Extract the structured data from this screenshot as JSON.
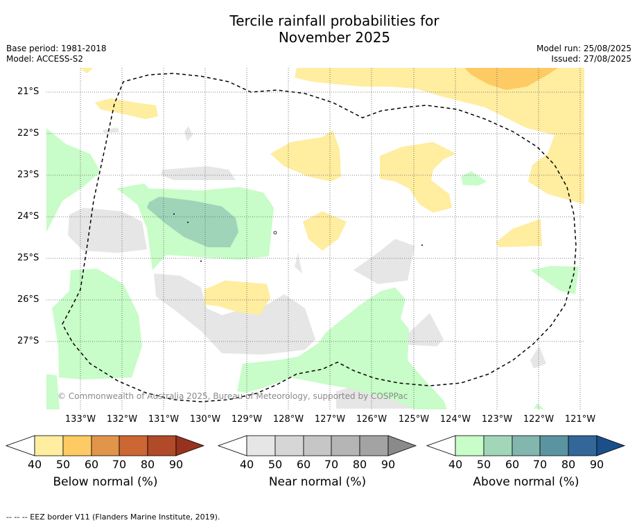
{
  "header": {
    "title_line1": "Tercile rainfall probabilities for",
    "title_line2": "November 2025",
    "base_period": "Base period: 1981-2018",
    "model": "Model: ACCESS-S2",
    "model_run": "Model run: 25/08/2025",
    "issued": "Issued: 27/08/2025"
  },
  "map": {
    "lat_labels": [
      "21°S",
      "22°S",
      "23°S",
      "24°S",
      "25°S",
      "26°S",
      "27°S"
    ],
    "lon_labels": [
      "133°W",
      "132°W",
      "131°W",
      "130°W",
      "129°W",
      "128°W",
      "127°W",
      "126°W",
      "125°W",
      "124°W",
      "123°W",
      "122°W",
      "121°W"
    ],
    "copyright": "© Commonwealth of Australia 2025, Bureau of Meteorology, supported by COSPPac",
    "colors": {
      "below_40": "#ffeda0",
      "below_50": "#feca64",
      "near_40": "#e6e6e6",
      "above_40": "#c8fcc8",
      "above_50": "#9fd4b8"
    }
  },
  "colorbars": [
    {
      "label": "Below normal (%)",
      "ticks": [
        "40",
        "50",
        "60",
        "70",
        "80",
        "90"
      ],
      "colors": [
        "#ffeda0",
        "#feca64",
        "#e0954a",
        "#cc6633",
        "#b04a28",
        "#96321e"
      ]
    },
    {
      "label": "Near normal (%)",
      "ticks": [
        "40",
        "50",
        "60",
        "70",
        "80",
        "90"
      ],
      "colors": [
        "#e6e6e6",
        "#d6d6d6",
        "#c6c6c6",
        "#b5b5b5",
        "#a3a3a3",
        "#8a8a8a"
      ]
    },
    {
      "label": "Above normal (%)",
      "ticks": [
        "40",
        "50",
        "60",
        "70",
        "80",
        "90"
      ],
      "colors": [
        "#c8fcc8",
        "#a2d6b8",
        "#82b6ae",
        "#5a94a0",
        "#336699",
        "#1a4f8a"
      ]
    }
  ],
  "footer": "--  --  -- EEZ border V11 (Flanders Marine Institute, 2019)."
}
